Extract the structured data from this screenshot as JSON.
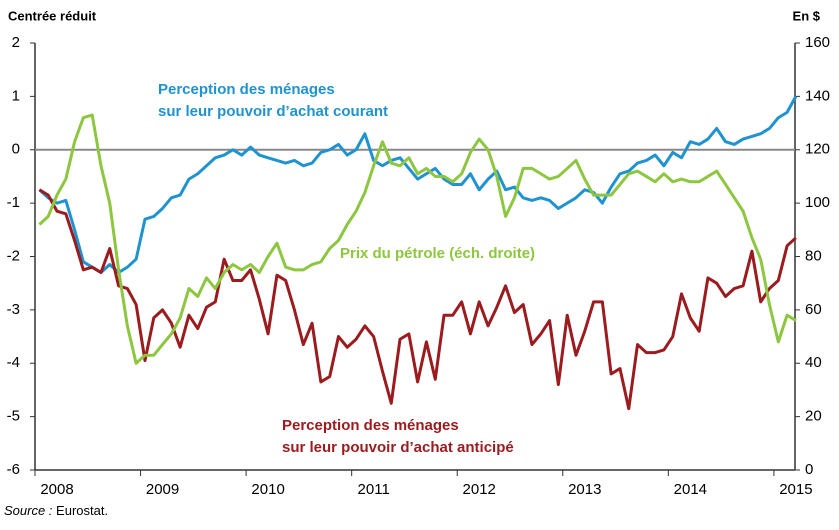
{
  "chart_data": {
    "type": "line",
    "y_axis_label": "Centrée réduit",
    "y2_axis_label": "En $",
    "source_label": "Source :",
    "source": "Eurostat.",
    "x": [
      2008.042,
      2008.125,
      2008.208,
      2008.292,
      2008.375,
      2008.458,
      2008.542,
      2008.625,
      2008.708,
      2008.792,
      2008.875,
      2008.958,
      2009.042,
      2009.125,
      2009.208,
      2009.292,
      2009.375,
      2009.458,
      2009.542,
      2009.625,
      2009.708,
      2009.792,
      2009.875,
      2009.958,
      2010.042,
      2010.125,
      2010.208,
      2010.292,
      2010.375,
      2010.458,
      2010.542,
      2010.625,
      2010.708,
      2010.792,
      2010.875,
      2010.958,
      2011.042,
      2011.125,
      2011.208,
      2011.292,
      2011.375,
      2011.458,
      2011.542,
      2011.625,
      2011.708,
      2011.792,
      2011.875,
      2011.958,
      2012.042,
      2012.125,
      2012.208,
      2012.292,
      2012.375,
      2012.458,
      2012.542,
      2012.625,
      2012.708,
      2012.792,
      2012.875,
      2012.958,
      2013.042,
      2013.125,
      2013.208,
      2013.292,
      2013.375,
      2013.458,
      2013.542,
      2013.625,
      2013.708,
      2013.792,
      2013.875,
      2013.958,
      2014.042,
      2014.125,
      2014.208,
      2014.292,
      2014.375,
      2014.458,
      2014.542,
      2014.625,
      2014.708,
      2014.792,
      2014.875,
      2014.958,
      2015.042,
      2015.125,
      2015.208
    ],
    "xlim": [
      2008,
      2015.2
    ],
    "xticks": [
      2008,
      2009,
      2010,
      2011,
      2012,
      2013,
      2014,
      2015
    ],
    "ylim": [
      -6,
      2
    ],
    "yticks": [
      2,
      1,
      0,
      -1,
      -2,
      -3,
      -4,
      -5,
      -6
    ],
    "y2lim": [
      0,
      160
    ],
    "y2ticks": [
      160,
      140,
      120,
      100,
      80,
      60,
      40,
      20,
      0
    ],
    "zero_line": true,
    "series": [
      {
        "name": "Perception des ménages sur leur pouvoir d'achat courant",
        "color": "#1f93d0",
        "values": [
          -0.75,
          -0.9,
          -1.0,
          -0.95,
          -1.5,
          -2.1,
          -2.2,
          -2.3,
          -2.15,
          -2.3,
          -2.2,
          -2.05,
          -1.3,
          -1.25,
          -1.1,
          -0.9,
          -0.85,
          -0.55,
          -0.45,
          -0.3,
          -0.15,
          -0.1,
          0.0,
          -0.1,
          0.05,
          -0.1,
          -0.15,
          -0.2,
          -0.25,
          -0.2,
          -0.3,
          -0.25,
          -0.05,
          0.0,
          0.1,
          -0.1,
          0.0,
          0.3,
          -0.2,
          -0.3,
          -0.2,
          -0.15,
          -0.35,
          -0.55,
          -0.45,
          -0.35,
          -0.55,
          -0.65,
          -0.65,
          -0.45,
          -0.75,
          -0.55,
          -0.4,
          -0.75,
          -0.7,
          -0.9,
          -0.95,
          -0.9,
          -0.95,
          -1.1,
          -1.0,
          -0.9,
          -0.75,
          -0.8,
          -1.0,
          -0.7,
          -0.45,
          -0.4,
          -0.25,
          -0.2,
          -0.1,
          -0.3,
          -0.05,
          -0.15,
          0.15,
          0.1,
          0.2,
          0.4,
          0.15,
          0.1,
          0.2,
          0.25,
          0.3,
          0.4,
          0.6,
          0.7,
          1.0
        ]
      },
      {
        "name": "Perception des ménages sur leur pouvoir d'achat anticipé",
        "color": "#9b1b1f",
        "values": [
          -0.75,
          -0.85,
          -1.15,
          -1.2,
          -1.7,
          -2.25,
          -2.2,
          -2.3,
          -1.85,
          -2.55,
          -2.6,
          -2.9,
          -3.95,
          -3.15,
          -3.0,
          -3.25,
          -3.7,
          -3.1,
          -3.35,
          -2.95,
          -2.85,
          -2.05,
          -2.45,
          -2.45,
          -2.25,
          -2.8,
          -3.45,
          -2.35,
          -2.45,
          -3.0,
          -3.65,
          -3.25,
          -4.35,
          -4.25,
          -3.5,
          -3.7,
          -3.55,
          -3.3,
          -3.5,
          -4.15,
          -4.75,
          -3.55,
          -3.45,
          -4.35,
          -3.6,
          -4.3,
          -3.1,
          -3.1,
          -2.85,
          -3.45,
          -2.85,
          -3.3,
          -2.95,
          -2.55,
          -3.05,
          -2.9,
          -3.65,
          -3.45,
          -3.2,
          -4.4,
          -3.1,
          -3.85,
          -3.4,
          -2.85,
          -2.85,
          -4.2,
          -4.1,
          -4.85,
          -3.65,
          -3.8,
          -3.8,
          -3.75,
          -3.5,
          -2.7,
          -3.15,
          -3.4,
          -2.4,
          -2.5,
          -2.75,
          -2.6,
          -2.55,
          -1.9,
          -2.85,
          -2.6,
          -2.45,
          -1.8,
          -1.65
        ]
      },
      {
        "name": "Prix du pétrole (éch. droite)",
        "color": "#8dc63f",
        "axis": "y2",
        "values": [
          92,
          95,
          103,
          109,
          123,
          132,
          133,
          114,
          100,
          75,
          54,
          40,
          43,
          43,
          47,
          51,
          57,
          68,
          65,
          72,
          68,
          74,
          77,
          75,
          77,
          74,
          80,
          85,
          76,
          75,
          75,
          77,
          78,
          83,
          86,
          92,
          97,
          104,
          114,
          123,
          115,
          114,
          117,
          111,
          113,
          110,
          110,
          108,
          111,
          119,
          124,
          120,
          110,
          95,
          102,
          113,
          113,
          111,
          109,
          110,
          113,
          116,
          109,
          103,
          103,
          103,
          107,
          111,
          112,
          110,
          108,
          111,
          108,
          109,
          108,
          108,
          110,
          112,
          107,
          102,
          97,
          87,
          79,
          62,
          48,
          58,
          56
        ]
      }
    ],
    "annotations": [
      {
        "lines": [
          "Perception des ménages",
          "sur leur pouvoir d’achat courant"
        ],
        "color": "#1f93d0"
      },
      {
        "lines": [
          "Prix du pétrole (éch. droite)"
        ],
        "color": "#8dc63f"
      },
      {
        "lines": [
          "Perception des ménages",
          "sur leur pouvoir d’achat anticipé"
        ],
        "color": "#9b1b1f"
      }
    ]
  }
}
